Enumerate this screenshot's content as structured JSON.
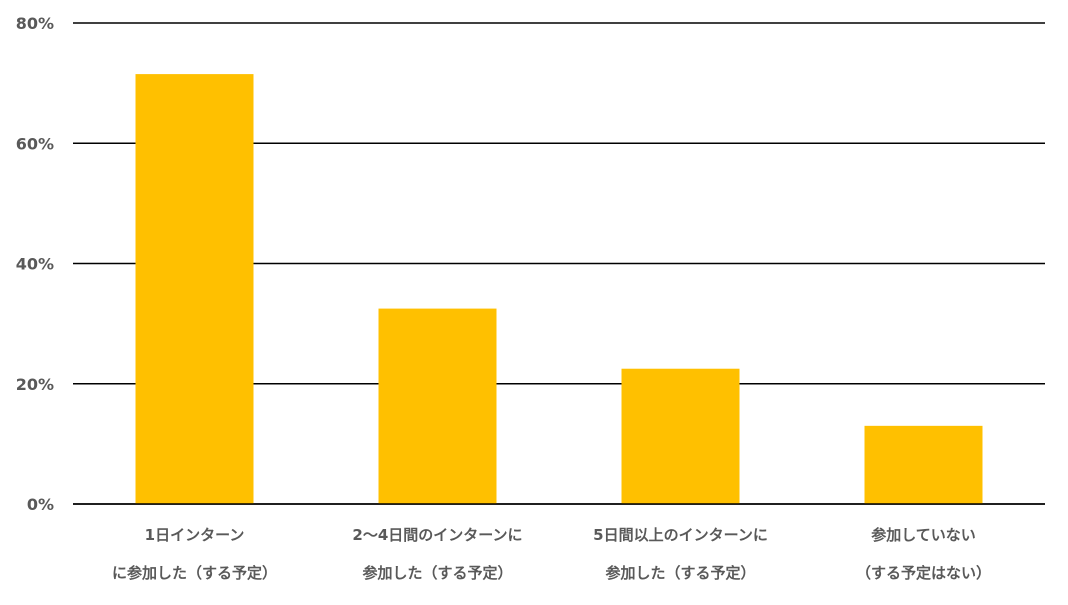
{
  "chart_data": {
    "type": "bar",
    "title": "",
    "xlabel": "",
    "ylabel": "",
    "ylim": [
      0,
      80
    ],
    "y_ticks": [
      0,
      20,
      40,
      60,
      80
    ],
    "y_tick_labels": [
      "0%",
      "20%",
      "40%",
      "60%",
      "80%"
    ],
    "grid": true,
    "legend": "none",
    "categories": [
      [
        "1日インターン",
        "に参加した（する予定）"
      ],
      [
        "2～4日間のインターンに",
        "参加した（する予定）"
      ],
      [
        "5日間以上のインターンに",
        "参加した（する予定）"
      ],
      [
        "参加していない",
        "（する予定はない）"
      ]
    ],
    "values": [
      71.5,
      32.5,
      22.5,
      13
    ],
    "bar_color": "#FFC000",
    "grid_color": "#000000",
    "label_color": "#595959"
  }
}
